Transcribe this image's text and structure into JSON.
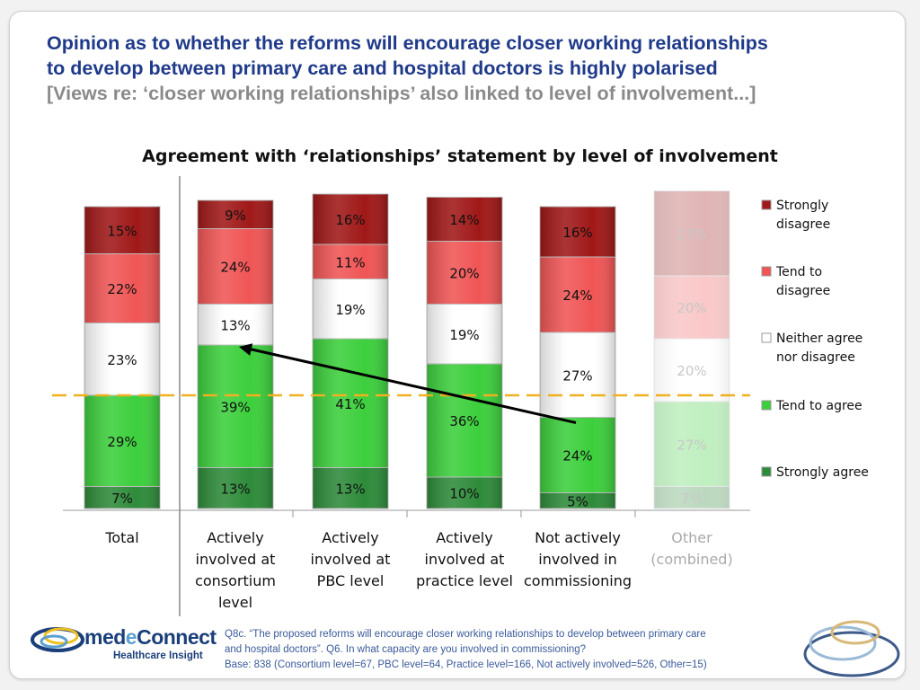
{
  "slide": {
    "title_line1": "Opinion as to whether the reforms will encourage closer working relationships",
    "title_line2": "to develop between primary care and hospital doctors is highly polarised",
    "subtitle": "[Views re: ‘closer working relationships’ also linked to level of involvement...]",
    "footnote_line1": "Q8c. “The proposed reforms will encourage closer working relationships to develop between primary care",
    "footnote_line2": "and hospital doctors”.  Q6. In what capacity are you involved in commissioning?",
    "footnote_line3": "Base: 838 (Consortium level=67, PBC level=64, Practice level=166, Not actively involved=526, Other=15)",
    "logo_name_a": "med",
    "logo_name_e": "e",
    "logo_name_b": "Connect",
    "logo_tagline": "Healthcare Insight"
  },
  "chart_data": {
    "type": "bar",
    "stacked": true,
    "title": "Agreement with ‘relationships’ statement by level of involvement",
    "categories": [
      [
        "Total"
      ],
      [
        "Actively",
        "involved at",
        "consortium",
        "level"
      ],
      [
        "Actively",
        "involved at",
        "PBC level"
      ],
      [
        "Actively",
        "involved at",
        "practice level"
      ],
      [
        "Not actively",
        "involved in",
        "commissioning"
      ],
      [
        "Other",
        "(combined)"
      ]
    ],
    "faded_categories": [
      5
    ],
    "series": [
      {
        "name": "Strongly agree",
        "color": "#2e8b3a",
        "values": [
          7,
          13,
          13,
          10,
          5,
          7
        ]
      },
      {
        "name": "Tend to agree",
        "color": "#3ccf3c",
        "values": [
          29,
          39,
          41,
          36,
          24,
          27
        ]
      },
      {
        "name": "Neither agree nor disagree",
        "color": "#ffffff",
        "values": [
          23,
          13,
          19,
          19,
          27,
          20
        ]
      },
      {
        "name": "Tend to disagree",
        "color": "#f05555",
        "values": [
          22,
          24,
          11,
          20,
          24,
          20
        ]
      },
      {
        "name": "Strongly disagree",
        "color": "#a01818",
        "values": [
          15,
          9,
          16,
          14,
          16,
          27
        ]
      }
    ],
    "legend_order": [
      "Strongly disagree",
      "Tend to disagree",
      "Neither agree nor disagree",
      "Tend to agree",
      "Strongly agree"
    ],
    "legend_position": "right",
    "reference_line": {
      "style": "dashed",
      "color": "#f0b020"
    },
    "arrow": {
      "from_category": 4,
      "to_category": 1,
      "color": "#000000"
    }
  }
}
